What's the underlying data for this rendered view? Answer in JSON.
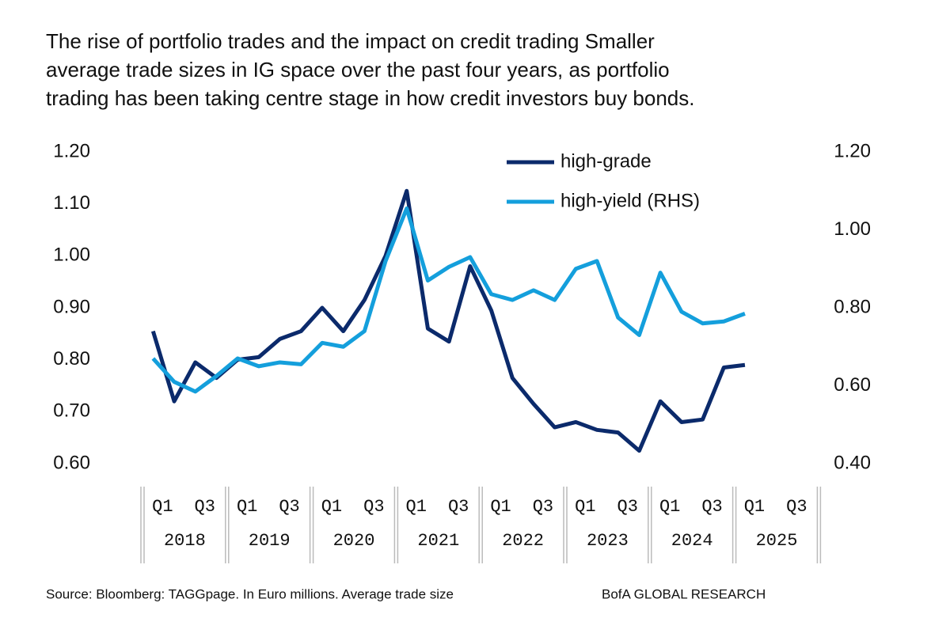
{
  "chart_data": {
    "type": "line",
    "title": "The rise of portfolio trades and the impact on credit trading Smaller average trade sizes in IG space over the past four years, as portfolio trading has been taking centre stage in how credit investors buy bonds.",
    "categories": [
      "Q1",
      null,
      "Q3",
      null,
      "Q1",
      null,
      "Q3",
      null,
      "Q1",
      null,
      "Q3",
      null,
      "Q1",
      null,
      "Q3",
      null,
      "Q1",
      null,
      "Q3",
      null,
      "Q1",
      null,
      "Q3",
      null,
      "Q1",
      null,
      "Q3",
      null,
      "Q1",
      null,
      "Q3",
      null
    ],
    "year_groups": [
      "2018",
      "2019",
      "2020",
      "2021",
      "2022",
      "2023",
      "2024",
      "2025"
    ],
    "series": [
      {
        "name": "high-grade",
        "color": "#0b2a6b",
        "values": [
          0.855,
          0.72,
          0.795,
          0.765,
          0.8,
          0.805,
          0.84,
          0.855,
          0.9,
          0.855,
          0.915,
          1.0,
          1.125,
          0.86,
          0.835,
          0.98,
          0.895,
          0.765,
          0.715,
          0.67,
          0.68,
          0.665,
          0.66,
          0.625,
          0.72,
          0.68,
          0.685,
          0.785,
          0.79,
          null,
          null,
          null
        ]
      },
      {
        "name": "high-yield (RHS)",
        "color": "#149fdc",
        "axis": "y2",
        "values": [
          0.67,
          0.61,
          0.585,
          0.625,
          0.67,
          0.65,
          0.66,
          0.655,
          0.71,
          0.7,
          0.74,
          0.92,
          1.055,
          0.87,
          0.905,
          0.93,
          0.835,
          0.82,
          0.845,
          0.82,
          0.9,
          0.92,
          0.775,
          0.73,
          0.89,
          0.79,
          0.76,
          0.765,
          0.785,
          null,
          null,
          null
        ]
      }
    ],
    "ylim": [
      0.6,
      1.2
    ],
    "yticks": [
      {
        "value": 0.6,
        "label": "0.60"
      },
      {
        "value": 0.7,
        "label": "0.70"
      },
      {
        "value": 0.8,
        "label": "0.80"
      },
      {
        "value": 0.9,
        "label": "0.90"
      },
      {
        "value": 1.0,
        "label": "1.00"
      },
      {
        "value": 1.1,
        "label": "1.10"
      },
      {
        "value": 1.2,
        "label": "1.20"
      }
    ],
    "y2lim": [
      0.4,
      1.2
    ],
    "y2ticks": [
      {
        "value": 0.4,
        "label": "0.40"
      },
      {
        "value": 0.6,
        "label": "0.60"
      },
      {
        "value": 0.8,
        "label": "0.80"
      },
      {
        "value": 1.0,
        "label": "1.00"
      },
      {
        "value": 1.2,
        "label": "1.20"
      }
    ],
    "source": "Source: Bloomberg: TAGGpage. In Euro millions. Average trade size",
    "credit": "BofA GLOBAL RESEARCH"
  }
}
